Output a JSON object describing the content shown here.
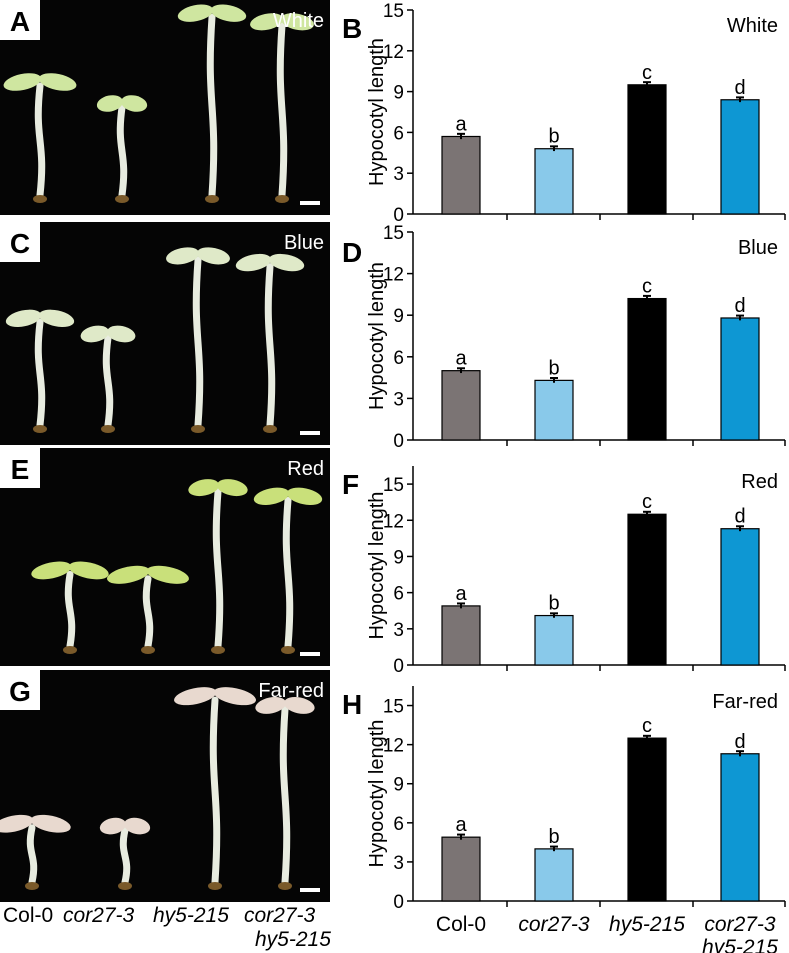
{
  "photo_panels": [
    {
      "letter": "A",
      "condition": "White"
    },
    {
      "letter": "C",
      "condition": "Blue"
    },
    {
      "letter": "E",
      "condition": "Red"
    },
    {
      "letter": "G",
      "condition": "Far-red"
    }
  ],
  "genotype_labels": [
    "Col-0",
    "cor27-3",
    "hy5-215",
    "cor27-3",
    "hy5-215"
  ],
  "seedling_colors": {
    "white": "#cfe6a0",
    "blue": "#dfe9c8",
    "red": "#c9e07a",
    "far_red": "#e8d9cf"
  },
  "chart_data": [
    {
      "type": "bar",
      "panel": "B",
      "title": "White",
      "ylabel": "Hypocotyl length",
      "ylim": [
        0,
        15
      ],
      "yticks": [
        0,
        3,
        6,
        9,
        12,
        15
      ],
      "categories": [
        "Col-0",
        "cor27-3",
        "hy5-215",
        "cor27-3 hy5-215"
      ],
      "values": [
        5.7,
        4.8,
        9.5,
        8.4
      ],
      "errors": [
        0.12,
        0.1,
        0.12,
        0.1
      ],
      "letters": [
        "a",
        "b",
        "c",
        "d"
      ],
      "colors": [
        "#7b7474",
        "#89c9ea",
        "#000000",
        "#0e97d3"
      ]
    },
    {
      "type": "bar",
      "panel": "D",
      "title": "Blue",
      "ylabel": "Hypocotyl length",
      "ylim": [
        0,
        15
      ],
      "yticks": [
        0,
        3,
        6,
        9,
        12,
        15
      ],
      "categories": [
        "Col-0",
        "cor27-3",
        "hy5-215",
        "cor27-3 hy5-215"
      ],
      "values": [
        5.0,
        4.3,
        10.2,
        8.8
      ],
      "errors": [
        0.1,
        0.1,
        0.12,
        0.1
      ],
      "letters": [
        "a",
        "b",
        "c",
        "d"
      ],
      "colors": [
        "#7b7474",
        "#89c9ea",
        "#000000",
        "#0e97d3"
      ]
    },
    {
      "type": "bar",
      "panel": "F",
      "title": "Red",
      "ylabel": "Hypocotyl length",
      "ylim": [
        0,
        16.5
      ],
      "yticks": [
        0,
        3,
        6,
        9,
        12,
        15
      ],
      "categories": [
        "Col-0",
        "cor27-3",
        "hy5-215",
        "cor27-3 hy5-215"
      ],
      "values": [
        4.9,
        4.1,
        12.5,
        11.3
      ],
      "errors": [
        0.12,
        0.1,
        0.12,
        0.12
      ],
      "letters": [
        "a",
        "b",
        "c",
        "d"
      ],
      "colors": [
        "#7b7474",
        "#89c9ea",
        "#000000",
        "#0e97d3"
      ]
    },
    {
      "type": "bar",
      "panel": "H",
      "title": "Far-red",
      "ylabel": "Hypocotyl length",
      "ylim": [
        0,
        16.5
      ],
      "yticks": [
        0,
        3,
        6,
        9,
        12,
        15
      ],
      "categories": [
        "Col-0",
        "cor27-3",
        "hy5-215",
        "cor27-3 hy5-215"
      ],
      "values": [
        4.9,
        4.0,
        12.5,
        11.3
      ],
      "errors": [
        0.12,
        0.1,
        0.1,
        0.12
      ],
      "letters": [
        "a",
        "b",
        "c",
        "d"
      ],
      "colors": [
        "#7b7474",
        "#89c9ea",
        "#000000",
        "#0e97d3"
      ]
    }
  ]
}
